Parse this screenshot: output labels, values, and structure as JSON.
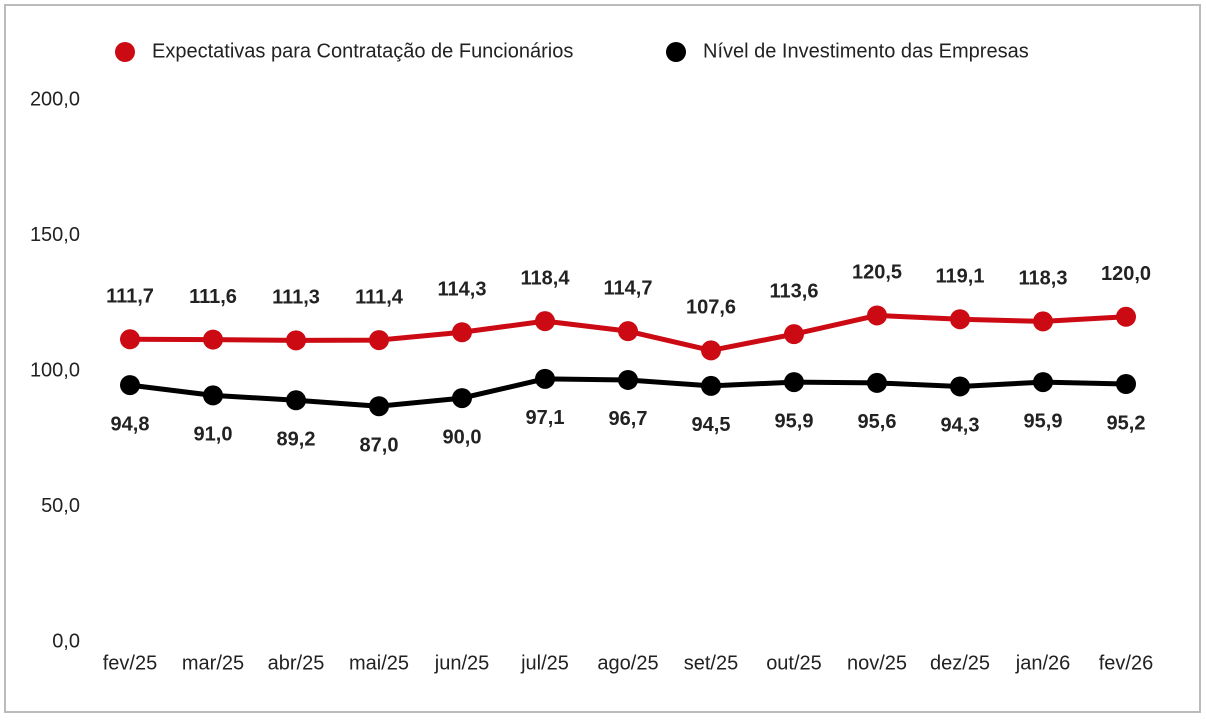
{
  "chart_data": {
    "type": "line",
    "categories": [
      "fev/25",
      "mar/25",
      "abr/25",
      "mai/25",
      "jun/25",
      "jul/25",
      "ago/25",
      "set/25",
      "out/25",
      "nov/25",
      "dez/25",
      "jan/26",
      "fev/26"
    ],
    "series": [
      {
        "name": "Expectativas para Contratação de Funcionários",
        "color": "#cc0a14",
        "values": [
          111.7,
          111.6,
          111.3,
          111.4,
          114.3,
          118.4,
          114.7,
          107.6,
          113.6,
          120.5,
          119.1,
          118.3,
          120.0
        ],
        "value_labels": [
          "111,7",
          "111,6",
          "111,3",
          "111,4",
          "114,3",
          "118,4",
          "114,7",
          "107,6",
          "113,6",
          "120,5",
          "119,1",
          "118,3",
          "120,0"
        ]
      },
      {
        "name": "Nível de Investimento das Empresas",
        "color": "#000000",
        "values": [
          94.8,
          91.0,
          89.2,
          87.0,
          90.0,
          97.1,
          96.7,
          94.5,
          95.9,
          95.6,
          94.3,
          95.9,
          95.2
        ],
        "value_labels": [
          "94,8",
          "91,0",
          "89,2",
          "87,0",
          "90,0",
          "97,1",
          "96,7",
          "94,5",
          "95,9",
          "95,6",
          "94,3",
          "95,9",
          "95,2"
        ]
      }
    ],
    "ylim": [
      0,
      200
    ],
    "yticks": [
      {
        "value": 0,
        "label": "0,0"
      },
      {
        "value": 50,
        "label": "50,0"
      },
      {
        "value": 100,
        "label": "100,0"
      },
      {
        "value": 150,
        "label": "150,0"
      },
      {
        "value": 200,
        "label": "200,0"
      }
    ],
    "grid": false,
    "legend": "top"
  }
}
